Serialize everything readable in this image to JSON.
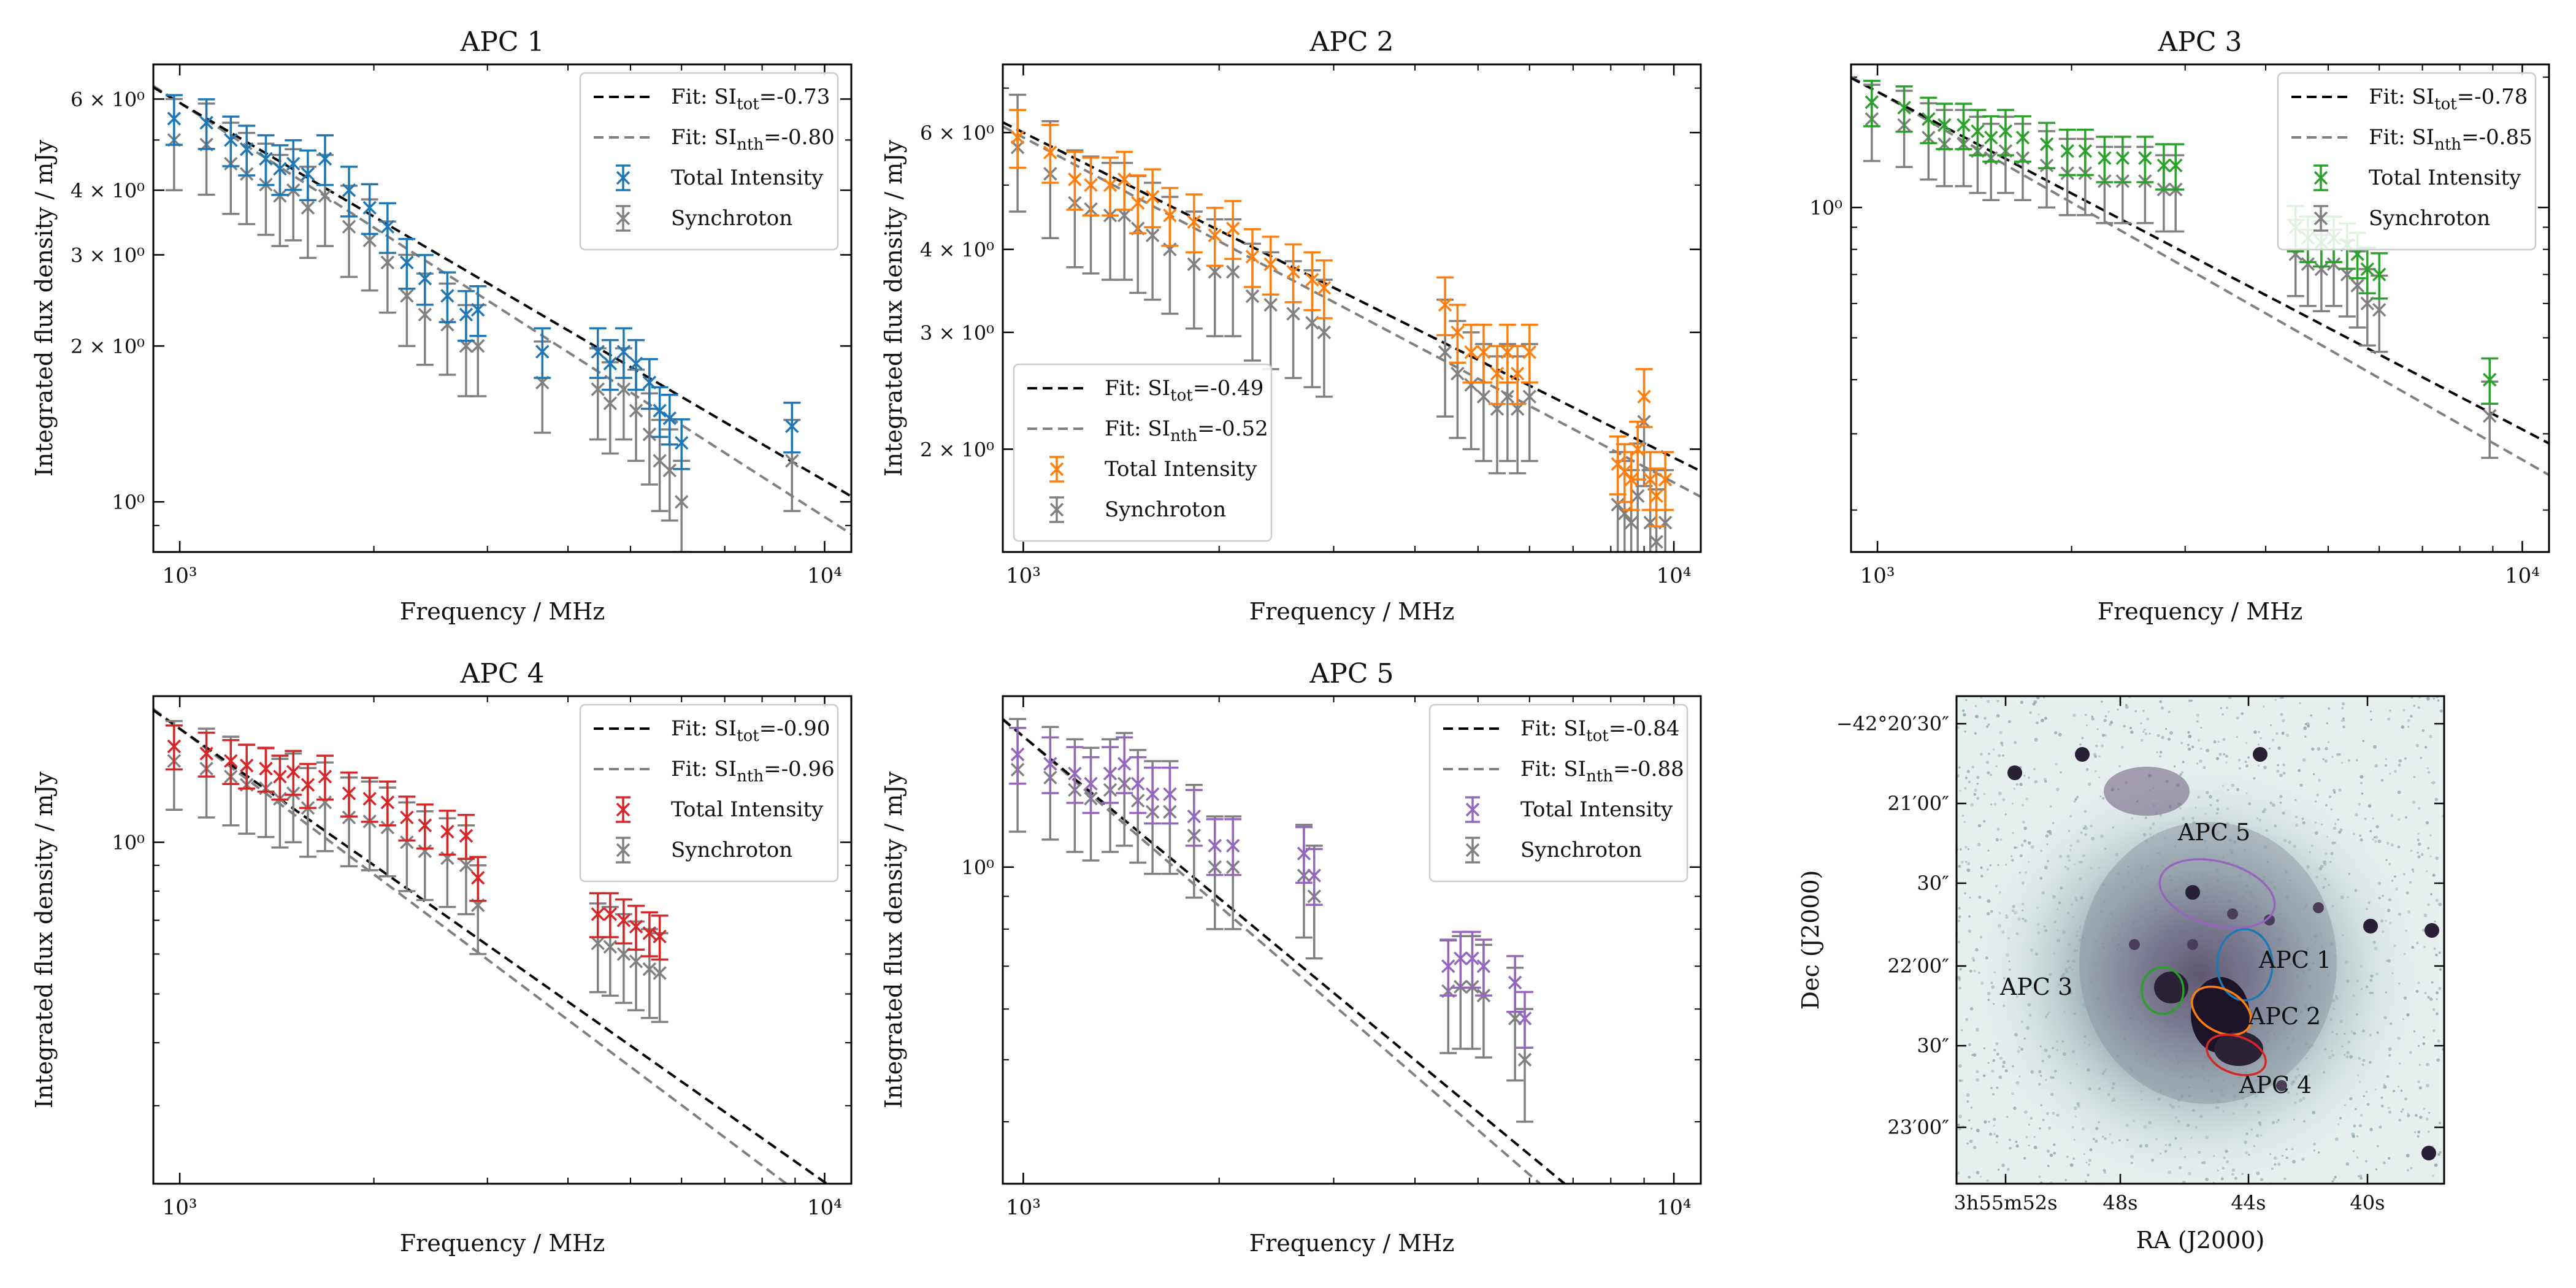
{
  "figure": {
    "x_axis_label": "Frequency / MHz",
    "y_axis_label": "Integrated flux density / mJy",
    "legend_total_label": "Total Intensity",
    "legend_sync_label": "Synchroton",
    "legend_fit_prefix": "Fit: SI",
    "legend_fit_tot_sub": "tot",
    "legend_fit_nth_sub": "nth",
    "fit_tot_color": "#000000",
    "fit_nth_color": "#808080",
    "sync_color": "#808080"
  },
  "chart_data": [
    {
      "type": "scatter",
      "title": "APC 1",
      "xlabel": "Frequency / MHz",
      "ylabel": "Integrated flux density / mJy",
      "xscale": "log",
      "yscale": "log",
      "xlim": [
        910,
        11000
      ],
      "ylim": [
        0.8,
        7.0
      ],
      "yticks": [
        {
          "value": 1,
          "label": "10⁰"
        },
        {
          "value": 2,
          "label": "2 × 10⁰"
        },
        {
          "value": 3,
          "label": "3 × 10⁰"
        },
        {
          "value": 4,
          "label": "4 × 10⁰"
        },
        {
          "value": 6,
          "label": "6 × 10⁰"
        }
      ],
      "xticks": [
        {
          "value": 1000,
          "label": "10³"
        },
        {
          "value": 10000,
          "label": "10⁴"
        }
      ],
      "legend_loc": "upper right",
      "fit_tot": {
        "si": -0.73,
        "label": "-0.73",
        "anchor": [
          1000,
          5.9
        ]
      },
      "fit_nth": {
        "si": -0.8,
        "label": "-0.80",
        "anchor": [
          1000,
          5.9
        ]
      },
      "series": [
        {
          "name": "Total Intensity",
          "color": "#1f77b4",
          "err_frac": 0.11,
          "x": [
            980,
            1100,
            1200,
            1270,
            1360,
            1430,
            1500,
            1580,
            1680,
            1830,
            1970,
            2100,
            2250,
            2400,
            2600,
            2780,
            2900,
            3650,
            4450,
            4650,
            4880,
            5100,
            5350,
            5550,
            5750,
            6000,
            8900
          ],
          "y": [
            5.5,
            5.4,
            5.0,
            4.8,
            4.6,
            4.4,
            4.5,
            4.3,
            4.6,
            4.0,
            3.7,
            3.4,
            2.9,
            2.7,
            2.5,
            2.3,
            2.35,
            1.95,
            1.95,
            1.85,
            1.95,
            1.85,
            1.7,
            1.5,
            1.45,
            1.3,
            1.4
          ]
        },
        {
          "name": "Synchroton",
          "color": "#808080",
          "err_frac": 0.2,
          "x": [
            980,
            1100,
            1200,
            1270,
            1360,
            1430,
            1500,
            1580,
            1680,
            1830,
            1970,
            2100,
            2250,
            2400,
            2600,
            2780,
            2900,
            3650,
            4450,
            4650,
            4880,
            5100,
            5350,
            5550,
            5750,
            6000,
            8900
          ],
          "y": [
            5.0,
            4.9,
            4.5,
            4.3,
            4.1,
            3.9,
            4.0,
            3.7,
            3.9,
            3.4,
            3.2,
            2.9,
            2.5,
            2.3,
            2.2,
            2.0,
            2.0,
            1.7,
            1.65,
            1.55,
            1.65,
            1.5,
            1.35,
            1.2,
            1.15,
            1.0,
            1.2
          ]
        }
      ]
    },
    {
      "type": "scatter",
      "title": "APC 2",
      "xlabel": "Frequency / MHz",
      "ylabel": "Integrated flux density / mJy",
      "xscale": "log",
      "yscale": "log",
      "xlim": [
        930,
        11000
      ],
      "ylim": [
        1.4,
        7.6
      ],
      "yticks": [
        {
          "value": 2,
          "label": "2 × 10⁰"
        },
        {
          "value": 3,
          "label": "3 × 10⁰"
        },
        {
          "value": 4,
          "label": "4 × 10⁰"
        },
        {
          "value": 6,
          "label": "6 × 10⁰"
        }
      ],
      "xticks": [
        {
          "value": 1000,
          "label": "10³"
        },
        {
          "value": 10000,
          "label": "10⁴"
        }
      ],
      "legend_loc": "lower left",
      "fit_tot": {
        "si": -0.49,
        "label": "-0.49",
        "anchor": [
          1000,
          6.0
        ]
      },
      "fit_nth": {
        "si": -0.52,
        "label": "-0.52",
        "anchor": [
          1000,
          5.9
        ]
      },
      "series": [
        {
          "name": "Total Intensity",
          "color": "#ff7f0e",
          "err_frac": 0.1,
          "x": [
            980,
            1100,
            1200,
            1270,
            1360,
            1430,
            1500,
            1580,
            1680,
            1830,
            1970,
            2100,
            2250,
            2400,
            2600,
            2780,
            2900,
            4450,
            4650,
            4880,
            5100,
            5350,
            5550,
            5750,
            6000,
            8200,
            8400,
            8600,
            8800,
            9000,
            9200,
            9400,
            9700
          ],
          "y": [
            5.9,
            5.6,
            5.1,
            5.0,
            5.0,
            5.1,
            4.7,
            4.8,
            4.5,
            4.4,
            4.2,
            4.3,
            3.9,
            3.8,
            3.7,
            3.6,
            3.5,
            3.3,
            3.0,
            2.8,
            2.8,
            2.6,
            2.8,
            2.6,
            2.8,
            1.9,
            1.85,
            1.8,
            2.0,
            2.4,
            1.8,
            1.7,
            1.8
          ]
        },
        {
          "name": "Synchroton",
          "color": "#808080",
          "err_frac": 0.2,
          "x": [
            980,
            1100,
            1200,
            1270,
            1360,
            1430,
            1500,
            1580,
            1680,
            1830,
            1970,
            2100,
            2250,
            2400,
            2600,
            2780,
            2900,
            4450,
            4650,
            4880,
            5100,
            5350,
            5550,
            5750,
            6000,
            8200,
            8400,
            8600,
            8800,
            9000,
            9200,
            9400,
            9700
          ],
          "y": [
            5.7,
            5.2,
            4.7,
            4.6,
            4.5,
            4.5,
            4.3,
            4.2,
            4.0,
            3.8,
            3.7,
            3.7,
            3.4,
            3.3,
            3.2,
            3.1,
            3.0,
            2.8,
            2.6,
            2.5,
            2.4,
            2.3,
            2.4,
            2.3,
            2.4,
            1.65,
            1.6,
            1.55,
            1.7,
            2.2,
            1.55,
            1.45,
            1.55
          ]
        }
      ]
    },
    {
      "type": "scatter",
      "title": "APC 3",
      "xlabel": "Frequency / MHz",
      "ylabel": "",
      "xscale": "log",
      "yscale": "log",
      "xlim": [
        910,
        11000
      ],
      "ylim": [
        0.16,
        2.14
      ],
      "yticks": [
        {
          "value": 1,
          "label": "10⁰"
        }
      ],
      "xticks": [
        {
          "value": 1000,
          "label": "10³"
        },
        {
          "value": 10000,
          "label": "10⁴"
        }
      ],
      "legend_loc": "upper right",
      "fit_tot": {
        "si": -0.78,
        "label": "-0.78",
        "anchor": [
          1000,
          1.85
        ]
      },
      "fit_nth": {
        "si": -0.85,
        "label": "-0.85",
        "anchor": [
          1000,
          1.85
        ]
      },
      "series": [
        {
          "name": "Total Intensity",
          "color": "#2ca02c",
          "err_frac": 0.12,
          "x": [
            980,
            1100,
            1200,
            1270,
            1360,
            1430,
            1500,
            1580,
            1680,
            1830,
            1970,
            2100,
            2250,
            2400,
            2600,
            2780,
            2900,
            4450,
            4650,
            4880,
            5100,
            5350,
            5550,
            5750,
            6000,
            8900
          ],
          "y": [
            1.75,
            1.7,
            1.6,
            1.55,
            1.55,
            1.5,
            1.45,
            1.5,
            1.45,
            1.4,
            1.35,
            1.35,
            1.3,
            1.3,
            1.3,
            1.25,
            1.25,
            0.9,
            0.85,
            0.83,
            0.85,
            0.82,
            0.78,
            0.72,
            0.7,
            0.4
          ]
        },
        {
          "name": "Synchroton",
          "color": "#808080",
          "err_frac": 0.2,
          "x": [
            980,
            1100,
            1200,
            1270,
            1360,
            1430,
            1500,
            1580,
            1680,
            1830,
            1970,
            2100,
            2250,
            2400,
            2600,
            2780,
            2900,
            4450,
            4650,
            4880,
            5100,
            5350,
            5550,
            5750,
            6000,
            8900
          ],
          "y": [
            1.6,
            1.55,
            1.45,
            1.4,
            1.4,
            1.35,
            1.3,
            1.35,
            1.3,
            1.25,
            1.2,
            1.2,
            1.15,
            1.15,
            1.15,
            1.1,
            1.1,
            0.78,
            0.74,
            0.72,
            0.74,
            0.7,
            0.66,
            0.6,
            0.58,
            0.33
          ]
        }
      ]
    },
    {
      "type": "scatter",
      "title": "APC 4",
      "xlabel": "Frequency / MHz",
      "ylabel": "Integrated flux density / mJy",
      "xscale": "log",
      "yscale": "log",
      "xlim": [
        910,
        11000
      ],
      "ylim": [
        0.21,
        1.95
      ],
      "yticks": [
        {
          "value": 1,
          "label": "10⁰"
        }
      ],
      "xticks": [
        {
          "value": 1000,
          "label": "10³"
        },
        {
          "value": 10000,
          "label": "10⁴"
        }
      ],
      "legend_loc": "upper right",
      "fit_tot": {
        "si": -0.9,
        "label": "-0.90",
        "anchor": [
          1000,
          1.68
        ]
      },
      "fit_nth": {
        "si": -0.96,
        "label": "-0.96",
        "anchor": [
          1000,
          1.68
        ]
      },
      "series": [
        {
          "name": "Total Intensity",
          "color": "#d62728",
          "err_frac": 0.1,
          "x": [
            980,
            1100,
            1200,
            1270,
            1360,
            1430,
            1500,
            1580,
            1680,
            1830,
            1970,
            2100,
            2250,
            2400,
            2600,
            2780,
            2900,
            4450,
            4650,
            4880,
            5100,
            5350,
            5550
          ],
          "y": [
            1.55,
            1.5,
            1.45,
            1.42,
            1.4,
            1.35,
            1.38,
            1.3,
            1.35,
            1.25,
            1.22,
            1.2,
            1.12,
            1.08,
            1.05,
            1.03,
            0.85,
            0.72,
            0.72,
            0.7,
            0.68,
            0.66,
            0.65
          ]
        },
        {
          "name": "Synchroton",
          "color": "#808080",
          "err_frac": 0.2,
          "x": [
            980,
            1100,
            1200,
            1270,
            1360,
            1430,
            1500,
            1580,
            1680,
            1830,
            1970,
            2100,
            2250,
            2400,
            2600,
            2780,
            2900,
            4450,
            4650,
            4880,
            5100,
            5350,
            5550
          ],
          "y": [
            1.45,
            1.4,
            1.35,
            1.3,
            1.28,
            1.22,
            1.25,
            1.17,
            1.2,
            1.12,
            1.1,
            1.07,
            1.0,
            0.96,
            0.93,
            0.9,
            0.75,
            0.63,
            0.62,
            0.6,
            0.58,
            0.56,
            0.55
          ]
        }
      ]
    },
    {
      "type": "scatter",
      "title": "APC 5",
      "xlabel": "Frequency / MHz",
      "ylabel": "Integrated flux density / mJy",
      "xscale": "log",
      "yscale": "log",
      "xlim": [
        930,
        11000
      ],
      "ylim": [
        0.32,
        1.85
      ],
      "yticks": [
        {
          "value": 1,
          "label": "10⁰"
        }
      ],
      "xticks": [
        {
          "value": 1000,
          "label": "10³"
        },
        {
          "value": 10000,
          "label": "10⁴"
        }
      ],
      "legend_loc": "upper right",
      "fit_tot": {
        "si": -0.84,
        "label": "-0.84",
        "anchor": [
          1000,
          1.6
        ]
      },
      "fit_nth": {
        "si": -0.88,
        "label": "-0.88",
        "anchor": [
          1000,
          1.6
        ]
      },
      "series": [
        {
          "name": "Total Intensity",
          "color": "#9467bd",
          "err_frac": 0.1,
          "x": [
            980,
            1100,
            1200,
            1270,
            1360,
            1430,
            1500,
            1580,
            1680,
            1830,
            1970,
            2100,
            2700,
            2800,
            4500,
            4700,
            4900,
            5100,
            5700,
            5900
          ],
          "y": [
            1.5,
            1.45,
            1.4,
            1.35,
            1.4,
            1.45,
            1.35,
            1.3,
            1.3,
            1.2,
            1.08,
            1.08,
            1.05,
            0.97,
            0.7,
            0.72,
            0.72,
            0.7,
            0.66,
            0.58
          ]
        },
        {
          "name": "Synchroton",
          "color": "#808080",
          "err_frac": 0.2,
          "x": [
            980,
            1100,
            1200,
            1270,
            1360,
            1430,
            1500,
            1580,
            1680,
            1830,
            1970,
            2100,
            2700,
            2800,
            4500,
            4700,
            4900,
            5100,
            5700,
            5900
          ],
          "y": [
            1.42,
            1.38,
            1.32,
            1.28,
            1.32,
            1.35,
            1.27,
            1.22,
            1.22,
            1.12,
            1.0,
            1.0,
            0.97,
            0.9,
            0.64,
            0.65,
            0.65,
            0.63,
            0.58,
            0.5
          ]
        }
      ]
    }
  ],
  "sky_map": {
    "xlabel": "RA (J2000)",
    "ylabel": "Dec (J2000)",
    "ra_ticks": [
      "3h55m52s",
      "48s",
      "44s",
      "40s"
    ],
    "dec_ticks": [
      "−42°20′30″",
      "21′00″",
      "30″",
      "22′00″",
      "30″",
      "23′00″"
    ],
    "regions": [
      {
        "label": "APC 5",
        "color": "#9467bd"
      },
      {
        "label": "APC 1",
        "color": "#1f77b4"
      },
      {
        "label": "APC 3",
        "color": "#2ca02c"
      },
      {
        "label": "APC 2",
        "color": "#ff7f0e"
      },
      {
        "label": "APC 4",
        "color": "#d62728"
      }
    ]
  }
}
